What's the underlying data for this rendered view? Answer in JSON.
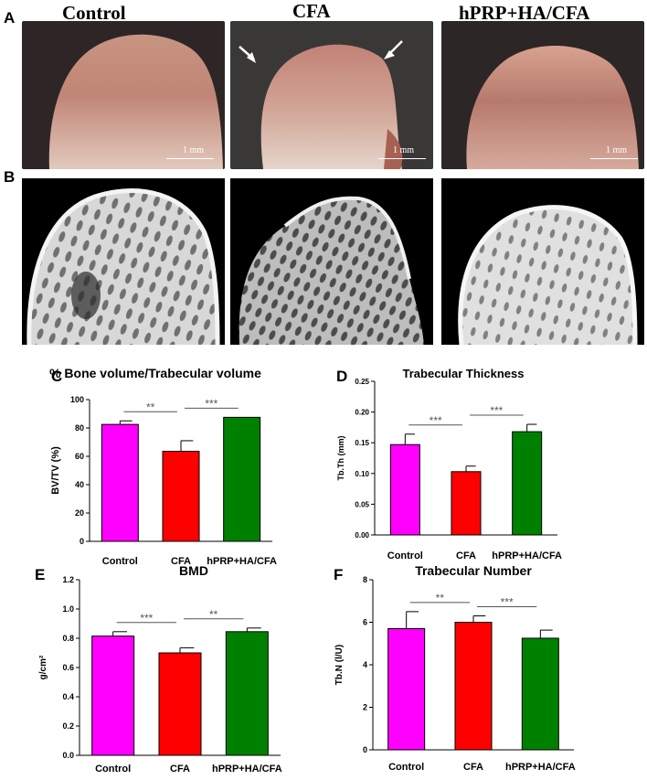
{
  "groups": [
    "Control",
    "CFA",
    "hPRP+HA/CFA"
  ],
  "panel_letters": [
    "A",
    "B",
    "C",
    "D",
    "E",
    "F"
  ],
  "scale_bar_label": "1 mm",
  "colors": {
    "control": "#ff00ff",
    "cfa": "#ff0000",
    "treated": "#008000",
    "photo_bg": "#2a2424",
    "bone": "#c89a8a"
  },
  "chart_data": [
    {
      "id": "C",
      "type": "bar",
      "title": "% Bone volume/Trabecular volume",
      "ylabel": "BV/TV (%)",
      "xlabel": "",
      "categories": [
        "Control",
        "CFA",
        "hPRP+HA/CFA"
      ],
      "values": [
        82.5,
        63.5,
        87.5
      ],
      "errors": [
        2.5,
        7.5,
        0
      ],
      "ylim": [
        0,
        100
      ],
      "yticks": [
        0,
        20,
        40,
        60,
        80,
        100
      ],
      "tick_labels": [
        "0",
        "20",
        "40",
        "60",
        "80",
        "100"
      ],
      "significance": [
        {
          "from": 0,
          "to": 1,
          "label": "**"
        },
        {
          "from": 1,
          "to": 2,
          "label": "***"
        }
      ]
    },
    {
      "id": "D",
      "type": "bar",
      "title": "Trabecular Thickness",
      "ylabel": "Tb.Th (mm)",
      "xlabel": "",
      "categories": [
        "Control",
        "CFA",
        "hPRP+HA/CFA"
      ],
      "values": [
        0.147,
        0.103,
        0.168
      ],
      "errors": [
        0.017,
        0.009,
        0.012
      ],
      "ylim": [
        0,
        0.25
      ],
      "yticks": [
        0,
        0.05,
        0.1,
        0.15,
        0.2,
        0.25
      ],
      "tick_labels": [
        "0.00",
        "0.05",
        "0.10",
        "0.15",
        "0.20",
        "0.25"
      ],
      "significance": [
        {
          "from": 0,
          "to": 1,
          "label": "***"
        },
        {
          "from": 1,
          "to": 2,
          "label": "***"
        }
      ]
    },
    {
      "id": "E",
      "type": "bar",
      "title": "BMD",
      "ylabel": "g/cm²",
      "xlabel": "",
      "categories": [
        "Control",
        "CFA",
        "hPRP+HA/CFA"
      ],
      "values": [
        0.815,
        0.7,
        0.845
      ],
      "errors": [
        0.03,
        0.035,
        0.025
      ],
      "ylim": [
        0,
        1.2
      ],
      "yticks": [
        0,
        0.2,
        0.4,
        0.6,
        0.8,
        1.0,
        1.2
      ],
      "tick_labels": [
        "0.0",
        "0.2",
        "0.4",
        "0.6",
        "0.8",
        "1.0",
        "1.2"
      ],
      "significance": [
        {
          "from": 0,
          "to": 1,
          "label": "***"
        },
        {
          "from": 1,
          "to": 2,
          "label": "**"
        }
      ]
    },
    {
      "id": "F",
      "type": "bar",
      "title": "Trabecular Number",
      "ylabel": "Tb.N (l/U)",
      "xlabel": "",
      "categories": [
        "Control",
        "CFA",
        "hPRP+HA/CFA"
      ],
      "values": [
        5.7,
        6.0,
        5.25
      ],
      "errors": [
        0.8,
        0.3,
        0.38
      ],
      "ylim": [
        0,
        8
      ],
      "yticks": [
        0,
        2,
        4,
        6,
        8
      ],
      "tick_labels": [
        "0",
        "2",
        "4",
        "6",
        "8"
      ],
      "significance": [
        {
          "from": 0,
          "to": 1,
          "label": "**"
        },
        {
          "from": 1,
          "to": 2,
          "label": "***"
        }
      ]
    }
  ]
}
